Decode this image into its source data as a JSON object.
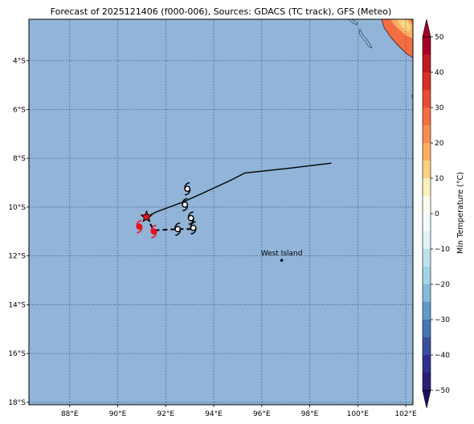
{
  "title": "Forecast of 2025121406 (f000-006), Sources: GDACS (TC track), GFS (Meteo)",
  "map": {
    "lon_range": [
      86.3,
      102.3
    ],
    "lat_range": [
      -18.1,
      -2.3
    ],
    "lon_ticks": [
      88,
      90,
      92,
      94,
      96,
      98,
      100,
      102
    ],
    "lon_tick_labels": [
      "88°E",
      "90°E",
      "92°E",
      "94°E",
      "96°E",
      "98°E",
      "100°E",
      "102°E"
    ],
    "lat_ticks": [
      -4,
      -6,
      -8,
      -10,
      -12,
      -14,
      -16,
      -18
    ],
    "lat_tick_labels": [
      "4°S",
      "6°S",
      "8°S",
      "10°S",
      "12°S",
      "14°S",
      "16°S",
      "18°S"
    ],
    "grid": true,
    "ocean_color": "#91b4d8"
  },
  "colorbar": {
    "label": "Min Temperature (°C)",
    "range": [
      -55,
      55
    ],
    "ticks": [
      50,
      40,
      30,
      20,
      10,
      0,
      -10,
      -20,
      -30,
      -40,
      -50
    ],
    "tick_labels": [
      "50",
      "40",
      "30",
      "20",
      "10",
      "0",
      "−10",
      "−20",
      "−30",
      "−40",
      "−50"
    ],
    "extend": "both",
    "bands": [
      {
        "from": 50,
        "to": 55,
        "color": "#a50026"
      },
      {
        "from": 45,
        "to": 50,
        "color": "#a50026"
      },
      {
        "from": 40,
        "to": 45,
        "color": "#c01a27"
      },
      {
        "from": 35,
        "to": 40,
        "color": "#d73027"
      },
      {
        "from": 30,
        "to": 35,
        "color": "#e54e35"
      },
      {
        "from": 25,
        "to": 30,
        "color": "#f46d43"
      },
      {
        "from": 20,
        "to": 25,
        "color": "#f88d52"
      },
      {
        "from": 15,
        "to": 20,
        "color": "#fdae61"
      },
      {
        "from": 10,
        "to": 15,
        "color": "#fed283"
      },
      {
        "from": 5,
        "to": 10,
        "color": "#fff1bd"
      },
      {
        "from": 0,
        "to": 5,
        "color": "#fefdf0"
      },
      {
        "from": -5,
        "to": 0,
        "color": "#f2fafc"
      },
      {
        "from": -10,
        "to": -5,
        "color": "#dff2f8"
      },
      {
        "from": -15,
        "to": -10,
        "color": "#bde2ee"
      },
      {
        "from": -20,
        "to": -15,
        "color": "#a3d3e6"
      },
      {
        "from": -25,
        "to": -20,
        "color": "#84bbd8"
      },
      {
        "from": -30,
        "to": -25,
        "color": "#649acb"
      },
      {
        "from": -35,
        "to": -30,
        "color": "#4575b4"
      },
      {
        "from": -40,
        "to": -35,
        "color": "#3a4fa0"
      },
      {
        "from": -45,
        "to": -40,
        "color": "#30308c"
      },
      {
        "from": -50,
        "to": -45,
        "color": "#2a1e78"
      },
      {
        "from": -55,
        "to": -50,
        "color": "#1a1064"
      }
    ]
  },
  "places": [
    {
      "name": "West Island",
      "lon": 96.83,
      "lat": -12.18
    }
  ],
  "track_observed": [
    [
      98.9,
      -8.2
    ],
    [
      97.2,
      -8.4
    ],
    [
      95.3,
      -8.6
    ],
    [
      94.6,
      -8.95
    ],
    [
      93.6,
      -9.4
    ],
    [
      92.7,
      -9.8
    ],
    [
      91.6,
      -10.2
    ],
    [
      91.2,
      -10.4
    ]
  ],
  "track_forecast": [
    [
      91.2,
      -10.4
    ],
    [
      91.5,
      -10.95
    ],
    [
      92.5,
      -10.9
    ],
    [
      93.2,
      -10.9
    ]
  ],
  "current_position": {
    "lon": 91.2,
    "lat": -10.4,
    "color": "#e8121b"
  },
  "storm_symbols": [
    {
      "lon": 92.9,
      "lat": -9.25,
      "color": "#000000"
    },
    {
      "lon": 92.8,
      "lat": -9.9,
      "color": "#000000"
    },
    {
      "lon": 93.05,
      "lat": -10.45,
      "color": "#000000"
    },
    {
      "lon": 93.15,
      "lat": -10.85,
      "color": "#000000"
    },
    {
      "lon": 92.5,
      "lat": -10.9,
      "color": "#000000"
    },
    {
      "lon": 90.9,
      "lat": -10.8,
      "color": "#e8121b"
    },
    {
      "lon": 91.5,
      "lat": -11.0,
      "color": "#e8121b"
    }
  ]
}
